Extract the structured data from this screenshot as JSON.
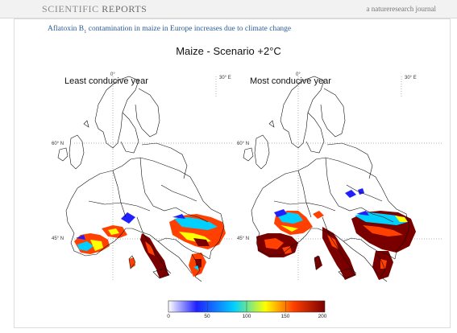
{
  "header": {
    "journal_name_a": "SCIENTIFIC ",
    "journal_name_b": "REPORTS",
    "tagline": "a natureresearch journal"
  },
  "figure": {
    "caption_pre": "Aflatoxin B",
    "caption_sub": "1",
    "caption_post": " contamination in maize in Europe increases due to climate change",
    "title": "Maize - Scenario +2°C",
    "panels": [
      {
        "label": "Least conducive year"
      },
      {
        "label": "Most conducive year"
      }
    ],
    "gridline_labels": {
      "lon_0": "0°",
      "lon_30": "30° E",
      "lat_60": "60° N",
      "lat_45": "45° N"
    }
  },
  "colorbar": {
    "min": 0,
    "max": 200,
    "ticks": [
      "0",
      "50",
      "100",
      "150",
      "200"
    ],
    "colors": [
      "#ffffff",
      "#2020ff",
      "#00d0ff",
      "#ffff00",
      "#ff4000",
      "#7a0000"
    ]
  }
}
